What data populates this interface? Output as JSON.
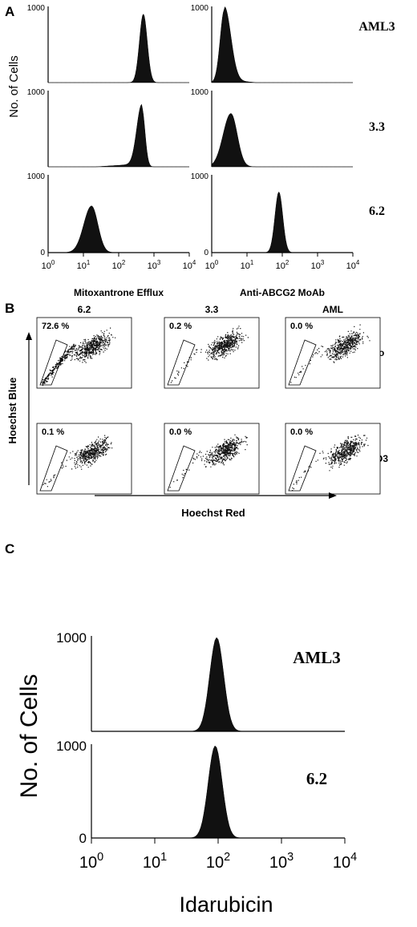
{
  "chart_data": [
    {
      "panel": "A",
      "type": "area",
      "ylabel": "No. of Cells",
      "columns": [
        {
          "xlabel": "Mitoxantrone Efflux"
        },
        {
          "xlabel": "Anti-ABCG2 MoAb"
        }
      ],
      "rows": [
        "AML3",
        "3.3",
        "6.2"
      ],
      "x_scale": "log",
      "xlim": [
        1,
        10000
      ],
      "ylim": [
        0,
        1000
      ],
      "x_ticks": [
        "10^0",
        "10^1",
        "10^2",
        "10^3",
        "10^4"
      ],
      "y_ticks": [
        "0",
        "1000"
      ],
      "histograms": [
        {
          "row": "AML3",
          "column": "Mitoxantrone Efflux",
          "peak_x": 500,
          "peak_y": 900
        },
        {
          "row": "AML3",
          "column": "Anti-ABCG2 MoAb",
          "peak_x": 2.3,
          "peak_y": 960
        },
        {
          "row": "3.3",
          "column": "Mitoxantrone Efflux",
          "peak_x": 450,
          "peak_y": 780
        },
        {
          "row": "3.3",
          "column": "Anti-ABCG2 MoAb",
          "peak_x": 3.5,
          "peak_y": 700
        },
        {
          "row": "6.2",
          "column": "Mitoxantrone Efflux",
          "peak_x": 17,
          "peak_y": 600
        },
        {
          "row": "6.2",
          "column": "Anti-ABCG2 MoAb",
          "peak_x": 80,
          "peak_y": 780
        }
      ]
    },
    {
      "panel": "B",
      "type": "scatter",
      "xlabel": "Hoechst Red",
      "ylabel": "Hoechst Blue",
      "columns": [
        "6.2",
        "3.3",
        "AML"
      ],
      "rows": [
        "Iso",
        "5D3"
      ],
      "plots": [
        {
          "row": "Iso",
          "column": "6.2",
          "percent": "72.6 %"
        },
        {
          "row": "Iso",
          "column": "3.3",
          "percent": "0.2 %"
        },
        {
          "row": "Iso",
          "column": "AML",
          "percent": "0.0 %"
        },
        {
          "row": "5D3",
          "column": "6.2",
          "percent": "0.1 %"
        },
        {
          "row": "5D3",
          "column": "3.3",
          "percent": "0.0 %"
        },
        {
          "row": "5D3",
          "column": "AML",
          "percent": "0.0 %"
        }
      ]
    },
    {
      "panel": "C",
      "type": "area",
      "xlabel": "Idarubicin",
      "ylabel": "No. of Cells",
      "rows": [
        "AML3",
        "6.2"
      ],
      "x_scale": "log",
      "xlim": [
        1,
        10000
      ],
      "ylim": [
        0,
        1000
      ],
      "x_ticks": [
        "10^0",
        "10^1",
        "10^2",
        "10^3",
        "10^4"
      ],
      "y_ticks": [
        "0",
        "1000"
      ],
      "histograms": [
        {
          "row": "AML3",
          "peak_x": 95,
          "peak_y": 1000
        },
        {
          "row": "6.2",
          "peak_x": 90,
          "peak_y": 1000
        }
      ]
    }
  ]
}
